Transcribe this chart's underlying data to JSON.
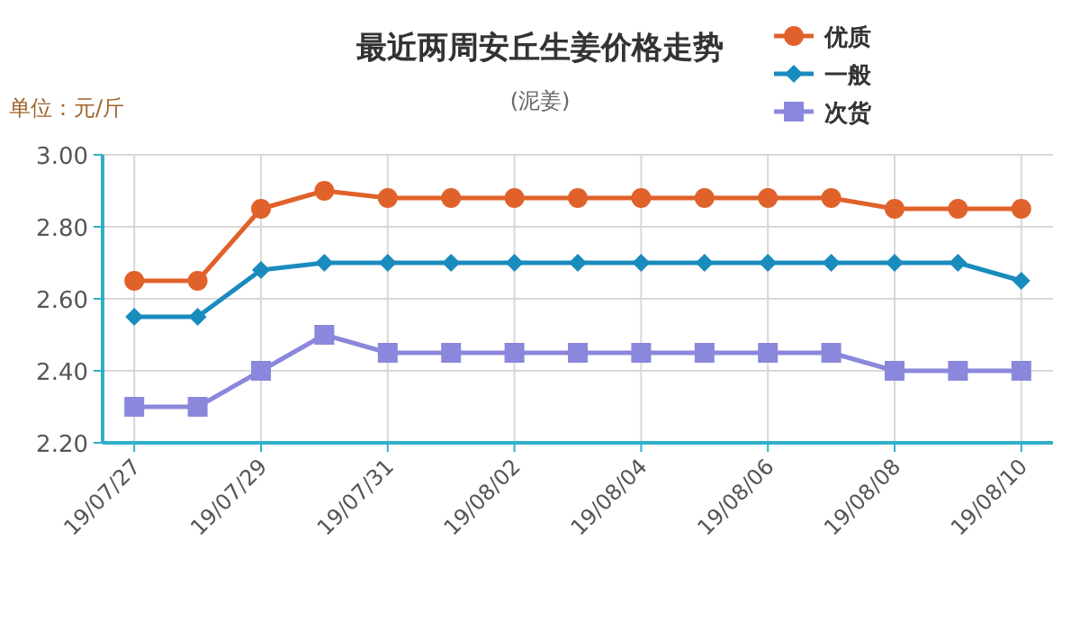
{
  "chart_data": {
    "type": "line",
    "title": "最近两周安丘生姜价格走势",
    "subtitle": "(泥姜)",
    "ylabel": "单位：元/斤",
    "categories": [
      "19/07/27",
      null,
      "19/07/29",
      null,
      "19/07/31",
      null,
      "19/08/02",
      null,
      "19/08/04",
      null,
      "19/08/06",
      null,
      "19/08/08",
      null,
      "19/08/10"
    ],
    "series": [
      {
        "name": "优质",
        "color": "#e0622a",
        "marker": "circle",
        "values": [
          2.65,
          2.65,
          2.85,
          2.9,
          2.88,
          2.88,
          2.88,
          2.88,
          2.88,
          2.88,
          2.88,
          2.88,
          2.85,
          2.85,
          2.85
        ]
      },
      {
        "name": "一般",
        "color": "#1a8bbd",
        "marker": "diamond",
        "values": [
          2.55,
          2.55,
          2.68,
          2.7,
          2.7,
          2.7,
          2.7,
          2.7,
          2.7,
          2.7,
          2.7,
          2.7,
          2.7,
          2.7,
          2.65
        ]
      },
      {
        "name": "次货",
        "color": "#8a87dc",
        "marker": "square",
        "values": [
          2.3,
          2.3,
          2.4,
          2.5,
          2.45,
          2.45,
          2.45,
          2.45,
          2.45,
          2.45,
          2.45,
          2.45,
          2.4,
          2.4,
          2.4
        ]
      }
    ],
    "ylim": [
      2.2,
      3.0
    ],
    "yticks": [
      {
        "value": 2.2,
        "label": "2.20"
      },
      {
        "value": 2.4,
        "label": "2.40"
      },
      {
        "value": 2.6,
        "label": "2.60"
      },
      {
        "value": 2.8,
        "label": "2.80"
      },
      {
        "value": 3.0,
        "label": "3.00"
      }
    ],
    "grid": true,
    "legend": "top right",
    "line_style": "solid"
  }
}
